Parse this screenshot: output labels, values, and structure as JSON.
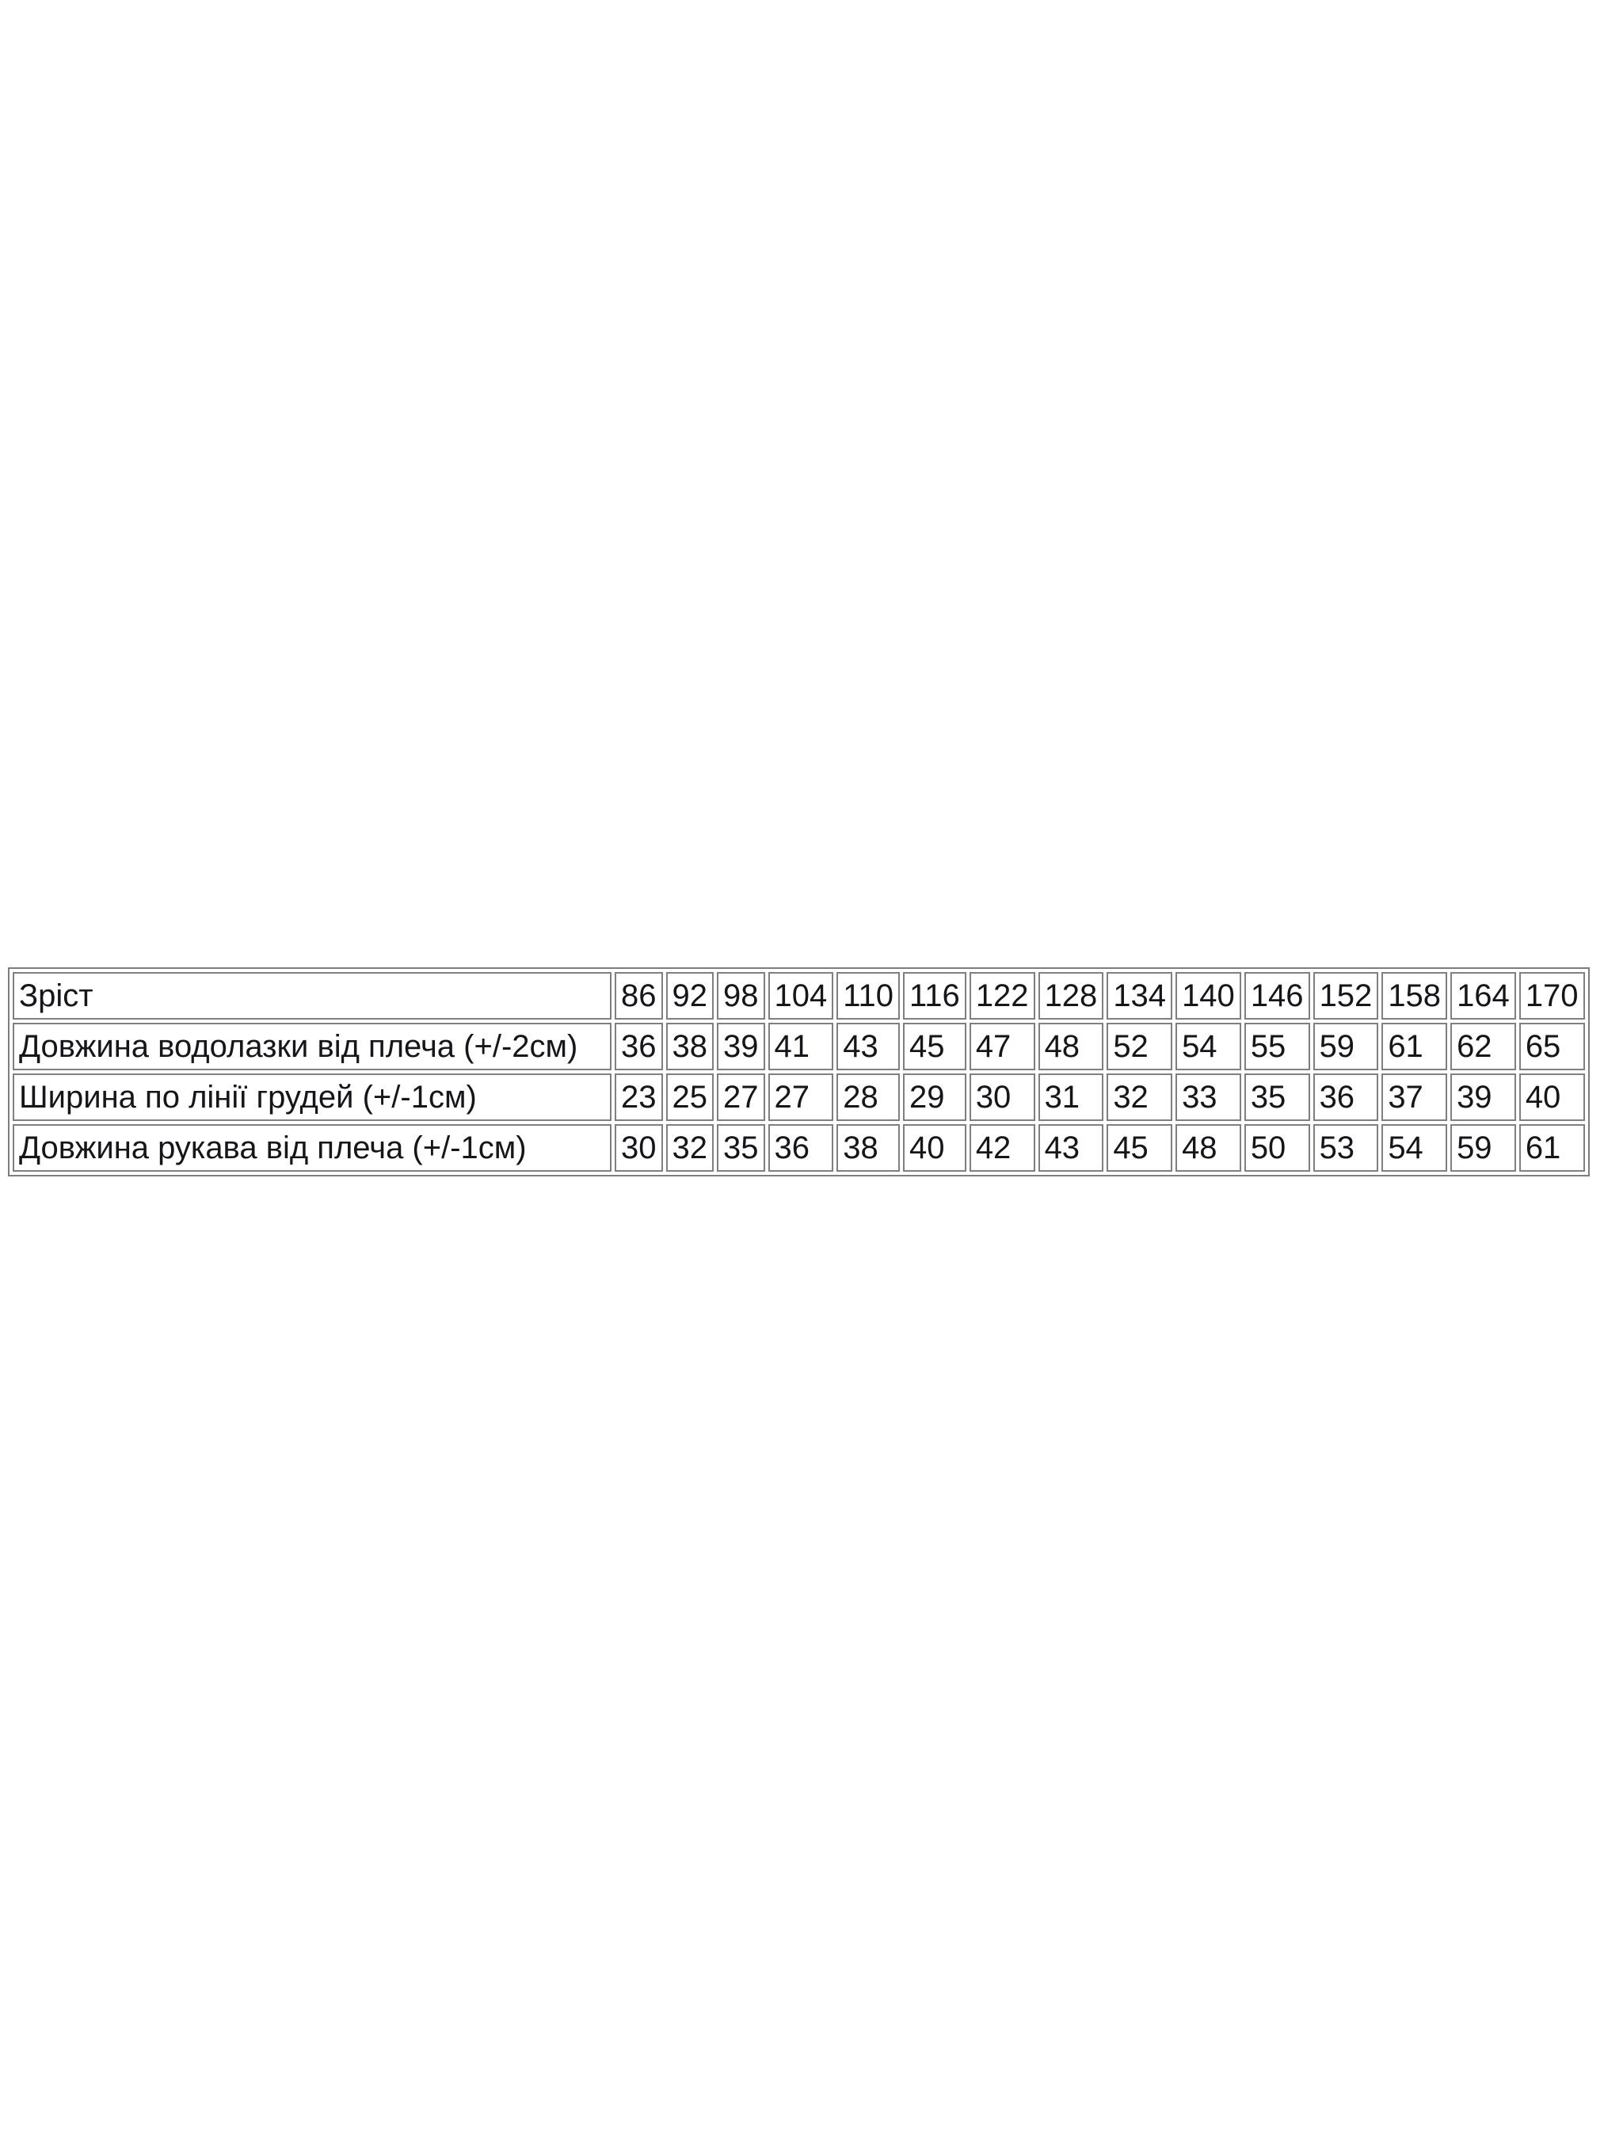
{
  "table": {
    "header_label": "Зріст",
    "header_values": [
      "86",
      "92",
      "98",
      "104",
      "110",
      "116",
      "122",
      "128",
      "134",
      "140",
      "146",
      "152",
      "158",
      "164",
      "170"
    ],
    "rows": [
      {
        "label": "Довжина водолазки від плеча (+/-2см)",
        "values": [
          "36",
          "38",
          "39",
          "41",
          "43",
          "45",
          "47",
          "48",
          "52",
          "54",
          "55",
          "59",
          "61",
          "62",
          "65"
        ]
      },
      {
        "label": "Ширина по лінії грудей (+/-1см)",
        "values": [
          "23",
          "25",
          "27",
          "27",
          "28",
          "29",
          "30",
          "31",
          "32",
          "33",
          "35",
          "36",
          "37",
          "39",
          "40"
        ]
      },
      {
        "label": "Довжина рукава від плеча (+/-1см)",
        "values": [
          "30",
          "32",
          "35",
          "36",
          "38",
          "40",
          "42",
          "43",
          "45",
          "48",
          "50",
          "53",
          "54",
          "59",
          "61"
        ]
      }
    ]
  },
  "chart_data": {
    "type": "table",
    "title": "",
    "columns": [
      "Зріст",
      "86",
      "92",
      "98",
      "104",
      "110",
      "116",
      "122",
      "128",
      "134",
      "140",
      "146",
      "152",
      "158",
      "164",
      "170"
    ],
    "rows": [
      [
        "Довжина водолазки від плеча (+/-2см)",
        36,
        38,
        39,
        41,
        43,
        45,
        47,
        48,
        52,
        54,
        55,
        59,
        61,
        62,
        65
      ],
      [
        "Ширина по лінії грудей (+/-1см)",
        23,
        25,
        27,
        27,
        28,
        29,
        30,
        31,
        32,
        33,
        35,
        36,
        37,
        39,
        40
      ],
      [
        "Довжина рукава від плеча (+/-1см)",
        30,
        32,
        35,
        36,
        38,
        40,
        42,
        43,
        45,
        48,
        50,
        53,
        54,
        59,
        61
      ]
    ]
  }
}
